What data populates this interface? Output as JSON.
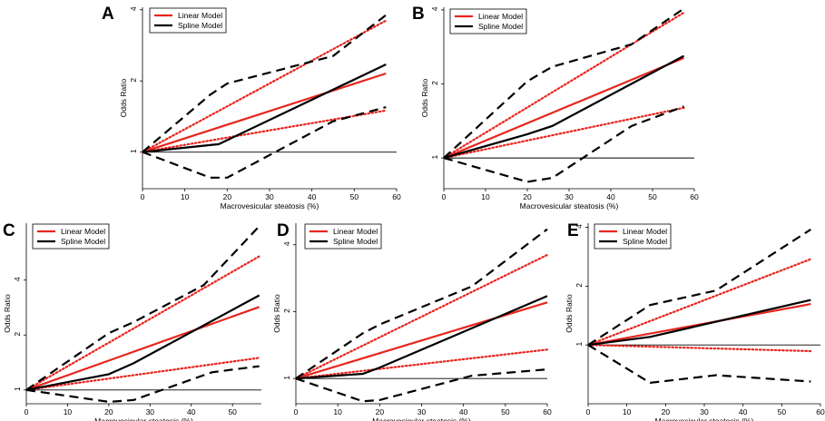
{
  "figure": {
    "linear_color": "#e8251e",
    "spline_color": "#000000"
  },
  "chart_data": [
    {
      "panel": "A",
      "type": "line",
      "xlabel": "Macrovesicular steatosis (%)",
      "ylabel": "Odds Ratio",
      "xlim": [
        0,
        60
      ],
      "xticks": [
        0,
        10,
        20,
        30,
        40,
        50,
        60
      ],
      "ylim": [
        0.7,
        4.1
      ],
      "yticks": [
        1,
        2,
        4
      ],
      "yscale": "log",
      "reference_line": 1,
      "legend": [
        "Linear Model",
        "Spline Model"
      ],
      "series": [
        {
          "name": "Linear Model",
          "role": "estimate",
          "style": "solid-red",
          "x": [
            0,
            57.5
          ],
          "y": [
            1,
            2.15
          ]
        },
        {
          "name": "Linear Model",
          "role": "ci-upper",
          "style": "dotted-red",
          "x": [
            0,
            57.5
          ],
          "y": [
            1,
            3.6
          ]
        },
        {
          "name": "Linear Model",
          "role": "ci-lower",
          "style": "dotted-red",
          "x": [
            0,
            57.5
          ],
          "y": [
            1,
            1.5
          ]
        },
        {
          "name": "Spline Model",
          "role": "estimate",
          "style": "solid-black",
          "x": [
            0,
            18,
            57.5
          ],
          "y": [
            1,
            1.08,
            2.35
          ]
        },
        {
          "name": "Spline Model",
          "role": "ci-upper",
          "style": "dashed-black",
          "x": [
            0,
            16,
            20,
            45,
            57.5
          ],
          "y": [
            1,
            1.75,
            1.95,
            2.55,
            3.8
          ]
        },
        {
          "name": "Spline Model",
          "role": "ci-lower",
          "style": "dashed-black",
          "x": [
            0,
            16,
            20,
            45,
            57.5
          ],
          "y": [
            1,
            0.78,
            0.78,
            1.35,
            1.55
          ]
        }
      ]
    },
    {
      "panel": "B",
      "type": "line",
      "xlabel": "Macrovesicular steatosis (%)",
      "ylabel": "Odds Ratio",
      "xlim": [
        0,
        60
      ],
      "xticks": [
        0,
        10,
        20,
        30,
        40,
        50,
        60
      ],
      "ylim": [
        0.75,
        4.1
      ],
      "yticks": [
        1,
        2,
        4
      ],
      "yscale": "log",
      "reference_line": 1,
      "legend": [
        "Linear Model",
        "Spline Model"
      ],
      "series": [
        {
          "name": "Linear Model",
          "role": "estimate",
          "style": "solid-red",
          "x": [
            0,
            57.5
          ],
          "y": [
            1,
            2.55
          ]
        },
        {
          "name": "Linear Model",
          "role": "ci-upper",
          "style": "dotted-red",
          "x": [
            0,
            57.5
          ],
          "y": [
            1,
            3.9
          ]
        },
        {
          "name": "Linear Model",
          "role": "ci-lower",
          "style": "dotted-red",
          "x": [
            0,
            57.5
          ],
          "y": [
            1,
            1.6
          ]
        },
        {
          "name": "Spline Model",
          "role": "estimate",
          "style": "solid-black",
          "x": [
            0,
            20,
            26,
            57.5
          ],
          "y": [
            1,
            1.25,
            1.35,
            2.6
          ]
        },
        {
          "name": "Spline Model",
          "role": "ci-upper",
          "style": "dashed-black",
          "x": [
            0,
            20,
            26,
            45,
            57.5
          ],
          "y": [
            1,
            2.05,
            2.35,
            2.9,
            4.05
          ]
        },
        {
          "name": "Spline Model",
          "role": "ci-lower",
          "style": "dashed-black",
          "x": [
            0,
            20,
            26,
            45,
            57.5
          ],
          "y": [
            1,
            0.8,
            0.83,
            1.35,
            1.62
          ]
        }
      ]
    },
    {
      "panel": "C",
      "type": "line",
      "xlabel": "Macrovesicular steatosis (%)",
      "ylabel": "Odds Ratio",
      "xlim": [
        0,
        57
      ],
      "xticks": [
        0,
        10,
        20,
        30,
        40,
        50
      ],
      "ylim": [
        0.84,
        8.2
      ],
      "yticks": [
        1,
        2,
        4
      ],
      "yscale": "log",
      "reference_line": 1,
      "legend": [
        "Linear Model",
        "Spline Model"
      ],
      "series": [
        {
          "name": "Linear Model",
          "role": "estimate",
          "style": "solid-red",
          "x": [
            0,
            56.5
          ],
          "y": [
            1,
            2.85
          ]
        },
        {
          "name": "Linear Model",
          "role": "ci-upper",
          "style": "dotted-red",
          "x": [
            0,
            56.5
          ],
          "y": [
            1,
            5.4
          ]
        },
        {
          "name": "Linear Model",
          "role": "ci-lower",
          "style": "dotted-red",
          "x": [
            0,
            56.5
          ],
          "y": [
            1,
            1.5
          ]
        },
        {
          "name": "Spline Model",
          "role": "estimate",
          "style": "solid-black",
          "x": [
            0,
            20,
            26,
            56.5
          ],
          "y": [
            1,
            1.22,
            1.4,
            3.3
          ]
        },
        {
          "name": "Spline Model",
          "role": "ci-upper",
          "style": "dashed-black",
          "x": [
            0,
            20,
            26,
            43,
            56.5
          ],
          "y": [
            1,
            2.05,
            2.35,
            3.75,
            7.9
          ]
        },
        {
          "name": "Spline Model",
          "role": "ci-lower",
          "style": "dashed-black",
          "x": [
            0,
            20,
            26,
            45,
            56.5
          ],
          "y": [
            1,
            0.86,
            0.88,
            1.25,
            1.35
          ]
        }
      ]
    },
    {
      "panel": "D",
      "type": "line",
      "xlabel": "Macrovesicular steatosis (%)",
      "ylabel": "Odds Ratio",
      "xlim": [
        0,
        60
      ],
      "xticks": [
        0,
        10,
        20,
        30,
        40,
        50,
        60
      ],
      "ylim": [
        0.77,
        5.0
      ],
      "yticks": [
        1,
        2,
        4
      ],
      "yscale": "log",
      "reference_line": 1,
      "legend": [
        "Linear Model",
        "Spline Model"
      ],
      "series": [
        {
          "name": "Linear Model",
          "role": "estimate",
          "style": "solid-red",
          "x": [
            0,
            60
          ],
          "y": [
            1,
            2.2
          ]
        },
        {
          "name": "Linear Model",
          "role": "ci-upper",
          "style": "dotted-red",
          "x": [
            0,
            60
          ],
          "y": [
            1,
            3.6
          ]
        },
        {
          "name": "Linear Model",
          "role": "ci-lower",
          "style": "dotted-red",
          "x": [
            0,
            60
          ],
          "y": [
            1,
            1.35
          ]
        },
        {
          "name": "Spline Model",
          "role": "estimate",
          "style": "solid-black",
          "x": [
            0,
            16,
            20,
            60
          ],
          "y": [
            1,
            1.05,
            1.12,
            2.35
          ]
        },
        {
          "name": "Spline Model",
          "role": "ci-upper",
          "style": "dashed-black",
          "x": [
            0,
            16,
            20,
            42,
            60
          ],
          "y": [
            1,
            1.6,
            1.75,
            2.6,
            4.7
          ]
        },
        {
          "name": "Spline Model",
          "role": "ci-lower",
          "style": "dashed-black",
          "x": [
            0,
            16,
            20,
            42,
            60
          ],
          "y": [
            1,
            0.79,
            0.8,
            1.03,
            1.1
          ]
        }
      ]
    },
    {
      "panel": "E",
      "type": "line",
      "xlabel": "Macrovesicular steatosis (%)",
      "ylabel": "Odds Ratio",
      "xlim": [
        0,
        60
      ],
      "xticks": [
        0,
        10,
        20,
        30,
        40,
        50,
        60
      ],
      "ylim": [
        0.5,
        4.2
      ],
      "yticks": [
        1,
        2,
        4
      ],
      "yscale": "log",
      "reference_line": 1,
      "legend": [
        "Linear Model",
        "Spline Model"
      ],
      "series": [
        {
          "name": "Linear Model",
          "role": "estimate",
          "style": "solid-red",
          "x": [
            0,
            57.5
          ],
          "y": [
            1,
            1.62
          ]
        },
        {
          "name": "Linear Model",
          "role": "ci-upper",
          "style": "dotted-red",
          "x": [
            0,
            57.5
          ],
          "y": [
            1,
            2.75
          ]
        },
        {
          "name": "Linear Model",
          "role": "ci-lower",
          "style": "dotted-red",
          "x": [
            0,
            57.5
          ],
          "y": [
            1,
            0.93
          ]
        },
        {
          "name": "Spline Model",
          "role": "estimate",
          "style": "solid-black",
          "x": [
            0,
            16,
            57.5
          ],
          "y": [
            1,
            1.1,
            1.7
          ]
        },
        {
          "name": "Spline Model",
          "role": "ci-upper",
          "style": "dashed-black",
          "x": [
            0,
            16,
            33,
            57.5
          ],
          "y": [
            1,
            1.6,
            1.9,
            3.9
          ]
        },
        {
          "name": "Spline Model",
          "role": "ci-lower",
          "style": "dashed-black",
          "x": [
            0,
            16,
            33,
            57.5
          ],
          "y": [
            1,
            0.64,
            0.7,
            0.65
          ]
        }
      ]
    }
  ]
}
